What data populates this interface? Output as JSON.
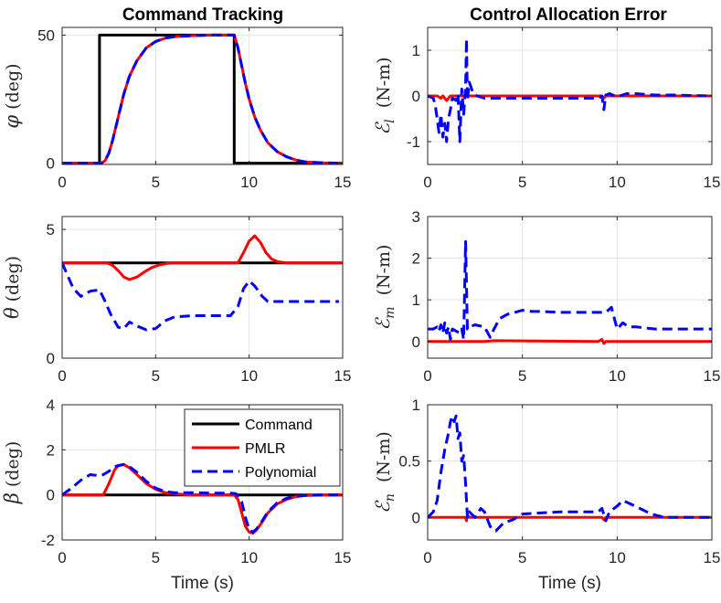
{
  "figure": {
    "left_title": "Command Tracking",
    "right_title": "Control Allocation Error"
  },
  "chart_data": [
    {
      "type": "line",
      "title": "Command Tracking",
      "ylabel_symbol": "φ",
      "ylabel_unit": "(deg)",
      "xlabel": "",
      "xlim": [
        0,
        15
      ],
      "ylim": [
        -0.5,
        53
      ],
      "xticks": [
        0,
        5,
        10,
        15
      ],
      "yticks": [
        0,
        50
      ],
      "ytick_labels": [
        "0",
        "50"
      ],
      "series": [
        {
          "name": "Command",
          "color": "#000000",
          "dash": "solid",
          "x": [
            0,
            2.0,
            2.0,
            9.2,
            9.2,
            15
          ],
          "y": [
            0,
            0,
            50,
            50,
            0,
            0
          ]
        },
        {
          "name": "PMLR",
          "color": "#ff0000",
          "dash": "solid",
          "x": [
            0,
            2.1,
            2.3,
            2.5,
            2.7,
            3.0,
            3.3,
            3.6,
            4.0,
            4.5,
            5.0,
            5.5,
            6.0,
            7.0,
            8.0,
            9.2,
            9.4,
            9.6,
            9.8,
            10.0,
            10.3,
            10.6,
            11.0,
            11.5,
            12.0,
            12.5,
            13.0,
            14.0,
            15.0
          ],
          "y": [
            0,
            0,
            1,
            4,
            9,
            18,
            27,
            34,
            40,
            45,
            47.5,
            48.8,
            49.4,
            49.8,
            50,
            50,
            45,
            38,
            31,
            25,
            18,
            13,
            8,
            4.5,
            2.5,
            1.2,
            0.5,
            0.1,
            0
          ]
        },
        {
          "name": "Polynomial",
          "color": "#0000ff",
          "dash": "dashed",
          "x": [
            0,
            2.1,
            2.3,
            2.5,
            2.7,
            3.0,
            3.3,
            3.6,
            4.0,
            4.5,
            5.0,
            5.5,
            6.0,
            7.0,
            8.0,
            9.2,
            9.4,
            9.6,
            9.8,
            10.0,
            10.3,
            10.6,
            11.0,
            11.5,
            12.0,
            12.5,
            13.0,
            14.0,
            15.0
          ],
          "y": [
            0,
            0,
            1,
            4,
            9,
            18,
            27,
            34,
            40,
            45,
            47.5,
            48.8,
            49.4,
            49.8,
            50,
            50,
            45,
            38,
            31,
            25,
            18,
            13,
            8,
            4.5,
            2.5,
            1.2,
            0.5,
            0.1,
            0
          ]
        }
      ]
    },
    {
      "type": "line",
      "title": "Control Allocation Error",
      "ylabel_symbol": "ℰ",
      "ylabel_sub": "l",
      "ylabel_unit": "(N-m)",
      "xlabel": "",
      "xlim": [
        0,
        15
      ],
      "ylim": [
        -1.5,
        1.5
      ],
      "xticks": [
        0,
        5,
        10,
        15
      ],
      "yticks": [
        -1,
        0,
        1
      ],
      "ytick_labels": [
        "-1",
        "0",
        "1"
      ],
      "series": [
        {
          "name": "PMLR",
          "color": "#ff0000",
          "dash": "solid",
          "x": [
            0,
            0.5,
            0.7,
            0.8,
            1.0,
            1.2,
            1.4,
            2.0,
            9.2,
            9.3,
            9.4,
            15
          ],
          "y": [
            0,
            0,
            -0.05,
            0,
            -0.1,
            0,
            0,
            0,
            0,
            -0.05,
            0,
            0
          ]
        },
        {
          "name": "Polynomial",
          "color": "#0000ff",
          "dash": "dashed",
          "x": [
            0,
            0.3,
            0.4,
            0.5,
            0.6,
            0.7,
            0.8,
            0.9,
            1.0,
            1.1,
            1.2,
            1.3,
            1.5,
            1.6,
            1.7,
            1.8,
            1.9,
            2.0,
            2.05,
            2.1,
            2.2,
            2.4,
            2.6,
            3.0,
            4.0,
            5.0,
            7.0,
            9.0,
            9.2,
            9.3,
            9.4,
            9.6,
            10.0,
            10.5,
            11.0,
            12.0,
            13.0,
            15.0
          ],
          "y": [
            0,
            -0.05,
            -0.2,
            -0.5,
            -0.8,
            -0.4,
            -0.9,
            -0.6,
            -1.0,
            -0.5,
            -0.3,
            -0.05,
            -0.1,
            0.05,
            -1.0,
            0.15,
            -0.4,
            0.2,
            1.25,
            -0.1,
            0.3,
            0.05,
            0,
            -0.05,
            -0.05,
            -0.05,
            -0.05,
            -0.05,
            0,
            -0.3,
            0.02,
            0.05,
            -0.02,
            0.05,
            0.05,
            0.02,
            0.02,
            0
          ]
        }
      ]
    },
    {
      "type": "line",
      "title": "",
      "ylabel_symbol": "θ",
      "ylabel_unit": "(deg)",
      "xlabel": "",
      "xlim": [
        0,
        15
      ],
      "ylim": [
        0,
        5.5
      ],
      "xticks": [
        0,
        5,
        10,
        15
      ],
      "yticks": [
        0,
        5
      ],
      "ytick_labels": [
        "0",
        "5"
      ],
      "series": [
        {
          "name": "Command",
          "color": "#000000",
          "dash": "solid",
          "x": [
            0,
            15
          ],
          "y": [
            3.7,
            3.7
          ]
        },
        {
          "name": "PMLR",
          "color": "#ff0000",
          "dash": "solid",
          "x": [
            0,
            2.4,
            2.7,
            3.0,
            3.3,
            3.6,
            4.0,
            4.4,
            4.8,
            5.2,
            5.6,
            6.0,
            9.4,
            9.7,
            10.0,
            10.3,
            10.6,
            10.9,
            11.2,
            11.5,
            12.0,
            15.0
          ],
          "y": [
            3.7,
            3.7,
            3.6,
            3.4,
            3.15,
            3.05,
            3.15,
            3.35,
            3.52,
            3.62,
            3.68,
            3.7,
            3.7,
            4.1,
            4.55,
            4.75,
            4.5,
            4.1,
            3.85,
            3.75,
            3.7,
            3.7
          ]
        },
        {
          "name": "Polynomial",
          "color": "#0000ff",
          "dash": "dashed",
          "x": [
            0,
            0.3,
            0.6,
            1.0,
            1.5,
            2.0,
            2.3,
            2.6,
            3.0,
            3.3,
            3.6,
            4.0,
            4.5,
            5.0,
            5.5,
            6.0,
            7.0,
            8.0,
            9.0,
            9.4,
            9.7,
            10.0,
            10.3,
            10.7,
            11.0,
            12.0,
            14.0,
            14.8
          ],
          "y": [
            3.7,
            3.2,
            2.7,
            2.4,
            2.6,
            2.65,
            2.2,
            1.7,
            1.2,
            1.15,
            1.4,
            1.25,
            1.1,
            1.15,
            1.45,
            1.6,
            1.65,
            1.65,
            1.65,
            2.0,
            2.7,
            3.0,
            2.8,
            2.4,
            2.2,
            2.2,
            2.2,
            2.2
          ]
        }
      ]
    },
    {
      "type": "line",
      "title": "",
      "ylabel_symbol": "ℰ",
      "ylabel_sub": "m",
      "ylabel_unit": "(N-m)",
      "xlabel": "",
      "xlim": [
        0,
        15
      ],
      "ylim": [
        -0.4,
        3
      ],
      "xticks": [
        0,
        5,
        10,
        15
      ],
      "yticks": [
        0,
        1,
        2,
        3
      ],
      "ytick_labels": [
        "0",
        "1",
        "2",
        "3"
      ],
      "series": [
        {
          "name": "PMLR",
          "color": "#ff0000",
          "dash": "solid",
          "x": [
            0,
            3.0,
            3.5,
            9.0,
            9.2,
            9.3,
            9.4,
            15
          ],
          "y": [
            0,
            0,
            0.02,
            0,
            0.05,
            -0.05,
            0,
            0
          ]
        },
        {
          "name": "Polynomial",
          "color": "#0000ff",
          "dash": "dashed",
          "x": [
            0,
            0.3,
            0.5,
            0.6,
            0.7,
            0.8,
            0.9,
            1.0,
            1.1,
            1.2,
            1.3,
            1.5,
            1.7,
            1.8,
            1.9,
            2.0,
            2.1,
            2.2,
            2.5,
            3.0,
            3.3,
            3.5,
            3.8,
            4.2,
            4.6,
            5.0,
            5.5,
            6.0,
            7.0,
            8.0,
            9.0,
            9.4,
            9.7,
            10.0,
            10.3,
            10.6,
            11.0,
            12.0,
            13.0,
            15.0
          ],
          "y": [
            0.3,
            0.3,
            0.35,
            0.25,
            0.4,
            0.2,
            0.45,
            0.2,
            0.35,
            0.05,
            0.3,
            0.25,
            0.2,
            0.3,
            0.05,
            2.4,
            0.3,
            0.35,
            0.4,
            0.35,
            0.1,
            0.3,
            0.55,
            0.65,
            0.7,
            0.75,
            0.72,
            0.72,
            0.7,
            0.7,
            0.7,
            0.7,
            0.82,
            0.3,
            0.45,
            0.35,
            0.35,
            0.3,
            0.3,
            0.3
          ]
        }
      ]
    },
    {
      "type": "line",
      "title": "",
      "ylabel_symbol": "β",
      "ylabel_unit": "(deg)",
      "xlabel": "Time (s)",
      "xlim": [
        0,
        15
      ],
      "ylim": [
        -2,
        4
      ],
      "xticks": [
        0,
        5,
        10,
        15
      ],
      "yticks": [
        -2,
        0,
        2,
        4
      ],
      "ytick_labels": [
        "-2",
        "0",
        "2",
        "4"
      ],
      "legend": {
        "position": "top-right",
        "entries": [
          "Command",
          "PMLR",
          "Polynomial"
        ]
      },
      "series": [
        {
          "name": "Command",
          "color": "#000000",
          "dash": "solid",
          "x": [
            0,
            15
          ],
          "y": [
            0,
            0
          ]
        },
        {
          "name": "PMLR",
          "color": "#ff0000",
          "dash": "solid",
          "x": [
            0,
            2.2,
            2.5,
            2.8,
            3.0,
            3.3,
            3.6,
            4.0,
            4.5,
            5.0,
            5.5,
            6.0,
            6.5,
            7.0,
            9.2,
            9.4,
            9.6,
            9.8,
            10.0,
            10.2,
            10.4,
            10.7,
            11.0,
            11.5,
            12.0,
            12.5,
            13.0,
            14.0,
            15.0
          ],
          "y": [
            0,
            0,
            0.5,
            1.1,
            1.3,
            1.35,
            1.2,
            0.9,
            0.5,
            0.25,
            0.1,
            0.05,
            0.02,
            0,
            0,
            -0.2,
            -0.8,
            -1.4,
            -1.65,
            -1.7,
            -1.55,
            -1.2,
            -0.8,
            -0.4,
            -0.2,
            -0.08,
            -0.03,
            0,
            0
          ]
        },
        {
          "name": "Polynomial",
          "color": "#0000ff",
          "dash": "dashed",
          "x": [
            0,
            0.5,
            1.0,
            1.5,
            2.0,
            2.2,
            2.5,
            2.8,
            3.0,
            3.3,
            3.6,
            4.0,
            4.5,
            5.0,
            5.5,
            6.0,
            7.0,
            8.0,
            9.0,
            9.3,
            9.6,
            9.8,
            10.0,
            10.2,
            10.4,
            10.7,
            11.0,
            11.5,
            12.0,
            12.5,
            13.0,
            14.0,
            15.0
          ],
          "y": [
            0,
            0.3,
            0.65,
            0.9,
            0.85,
            0.9,
            1.05,
            1.25,
            1.3,
            1.35,
            1.25,
            1.0,
            0.6,
            0.3,
            0.15,
            0.1,
            0.1,
            0.08,
            0.08,
            0.05,
            -0.3,
            -1.0,
            -1.55,
            -1.65,
            -1.5,
            -1.15,
            -0.75,
            -0.35,
            -0.15,
            -0.05,
            -0.02,
            0,
            0
          ]
        }
      ]
    },
    {
      "type": "line",
      "title": "",
      "ylabel_symbol": "ℰ",
      "ylabel_sub": "n",
      "ylabel_unit": "(N-m)",
      "xlabel": "Time (s)",
      "xlim": [
        0,
        15
      ],
      "ylim": [
        -0.2,
        1
      ],
      "xticks": [
        0,
        5,
        10,
        15
      ],
      "yticks": [
        0,
        0.5,
        1
      ],
      "ytick_labels": [
        "0",
        "0.5",
        "1"
      ],
      "series": [
        {
          "name": "PMLR",
          "color": "#ff0000",
          "dash": "solid",
          "x": [
            0,
            2.0,
            2.05,
            2.1,
            2.2,
            9.2,
            9.3,
            9.4,
            15
          ],
          "y": [
            0,
            0,
            -0.03,
            0.02,
            0,
            0,
            -0.02,
            0,
            0
          ]
        },
        {
          "name": "Polynomial",
          "color": "#0000ff",
          "dash": "dashed",
          "x": [
            0,
            0.3,
            0.5,
            0.7,
            0.9,
            1.1,
            1.2,
            1.3,
            1.4,
            1.5,
            1.6,
            1.7,
            1.8,
            1.9,
            2.0,
            2.1,
            2.2,
            2.5,
            2.8,
            3.0,
            3.3,
            3.6,
            4.0,
            4.5,
            5.0,
            6.0,
            7.0,
            8.0,
            9.0,
            9.2,
            9.4,
            9.6,
            10.0,
            10.3,
            10.7,
            11.2,
            11.8,
            12.5,
            13.0,
            15.0
          ],
          "y": [
            0,
            0.05,
            0.15,
            0.4,
            0.6,
            0.75,
            0.85,
            0.9,
            0.85,
            0.9,
            0.7,
            0.75,
            0.5,
            0.55,
            0.3,
            0.0,
            0.05,
            0.0,
            0.08,
            0.05,
            -0.08,
            -0.12,
            -0.05,
            -0.02,
            0.03,
            0.04,
            0.05,
            0.05,
            0.05,
            0.08,
            -0.03,
            0.05,
            0.1,
            0.15,
            0.12,
            0.08,
            0.03,
            0,
            0,
            0
          ]
        }
      ]
    }
  ]
}
